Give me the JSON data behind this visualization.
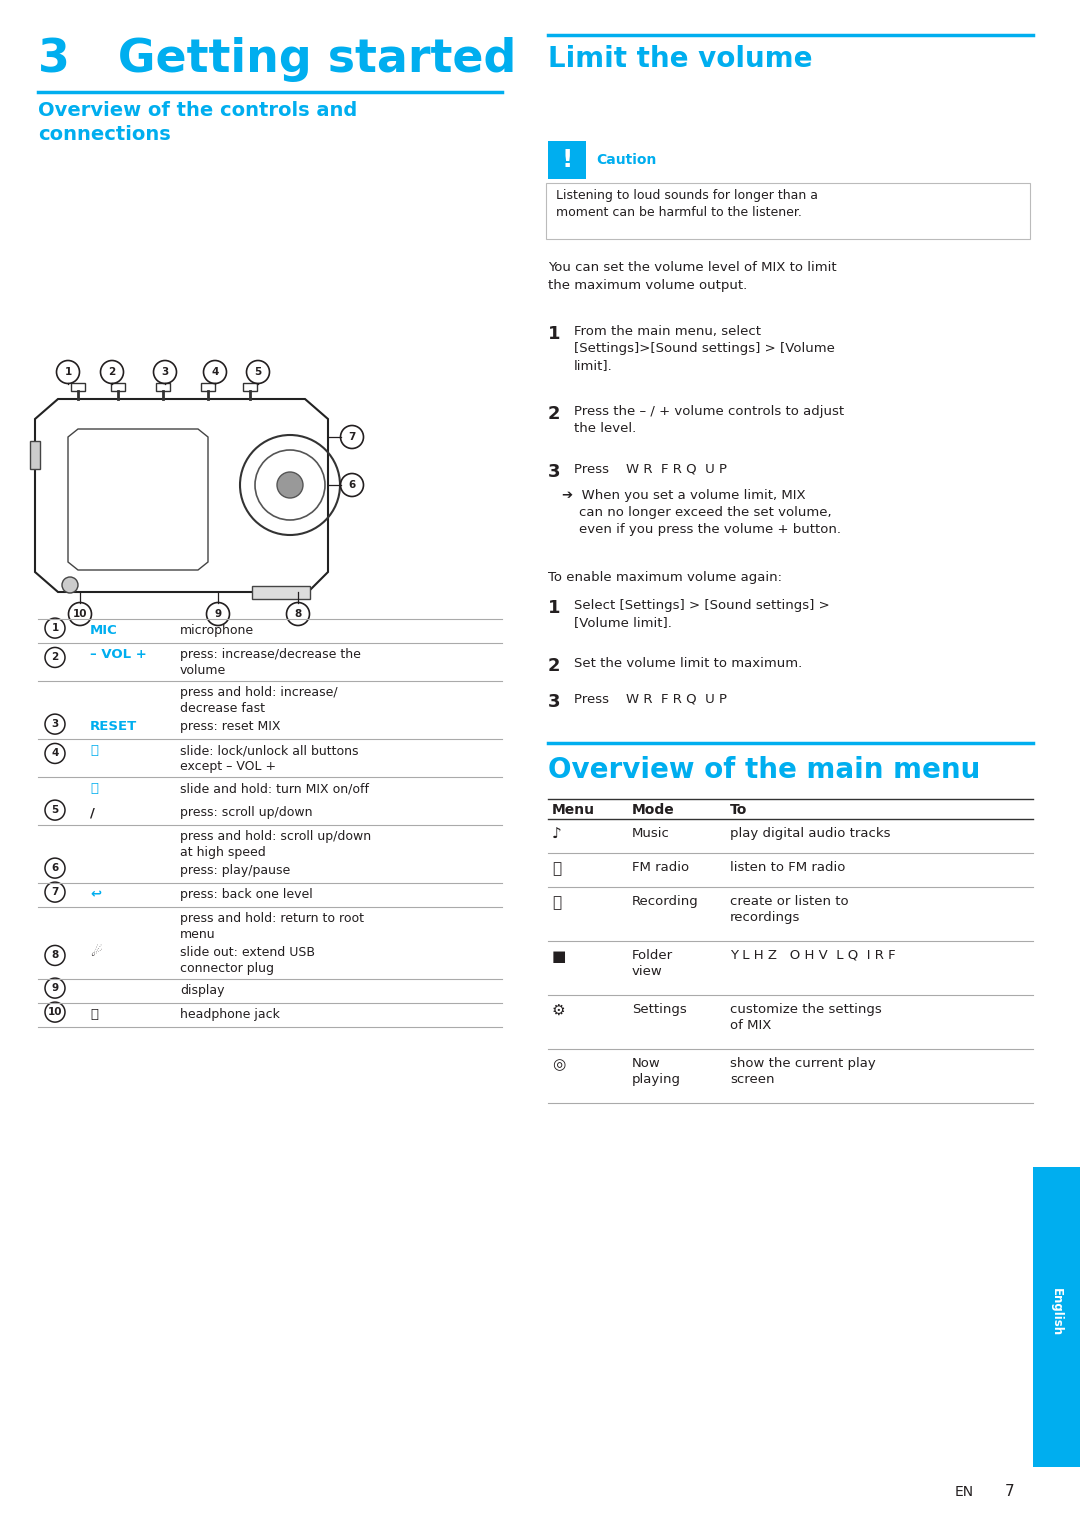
{
  "bg_color": "#ffffff",
  "cyan": "#00AEEF",
  "dark_text": "#231F20",
  "gray_line": "#AAAAAA",
  "title_main": "3   Getting started",
  "section1_title": "Overview of the controls and\nconnections",
  "section2_title": "Limit the volume",
  "section3_title": "Overview of the main menu",
  "caution_title": "Caution",
  "caution_text": "Listening to loud sounds for longer than a\nmoment can be harmful to the listener.",
  "limit_vol_intro": "You can set the volume level of MIX to limit\nthe maximum volume output.",
  "limit_steps": [
    {
      "num": "1",
      "text": "From the main menu, select\n[Settings]>[Sound settings] > [Volume\nlimit]."
    },
    {
      "num": "2",
      "text": "Press the – / + volume controls to adjust\nthe level."
    },
    {
      "num": "3",
      "text": "Press    W R  F R Q  U P"
    }
  ],
  "limit_arrow_text": "➔  When you set a volume limit, MIX\n    can no longer exceed the set volume,\n    even if you press the volume + button.",
  "enable_intro": "To enable maximum volume again:",
  "enable_steps": [
    {
      "num": "1",
      "text": "Select [Settings] > [Sound settings] >\n[Volume limit]."
    },
    {
      "num": "2",
      "text": "Set the volume limit to maximum."
    },
    {
      "num": "3",
      "text": "Press    W R  F R Q  U P"
    }
  ],
  "ctrl_nums": [
    "1",
    "2",
    "",
    "3",
    "4",
    "",
    "5",
    "",
    "6",
    "7",
    "",
    "8",
    "9",
    "10"
  ],
  "ctrl_descs": [
    "microphone",
    "press: increase/decrease the\nvolume",
    "press and hold: increase/\ndecrease fast",
    "press: reset MIX",
    "slide: lock/unlock all buttons\nexcept – VOL +",
    "slide and hold: turn MIX on/off",
    "press: scroll up/down",
    "press and hold: scroll up/down\nat high speed",
    "press: play/pause",
    "press: back one level",
    "press and hold: return to root\nmenu",
    "slide out: extend USB\nconnector plug",
    "display",
    "headphone jack"
  ],
  "ctrl_sep": [
    true,
    true,
    false,
    true,
    true,
    false,
    true,
    false,
    true,
    true,
    false,
    true,
    true,
    true
  ],
  "menu_modes": [
    "Music",
    "FM radio",
    "Recording",
    "Folder\nview",
    "Settings",
    "Now\nplaying"
  ],
  "menu_descs": [
    "play digital audio tracks",
    "listen to FM radio",
    "create or listen to\nrecordings",
    "Y L H Z   O H V  L Q  I R F",
    "customize the settings\nof MIX",
    "show the current play\nscreen"
  ],
  "english_tab": "English",
  "page_num": "7",
  "lang_label": "EN"
}
